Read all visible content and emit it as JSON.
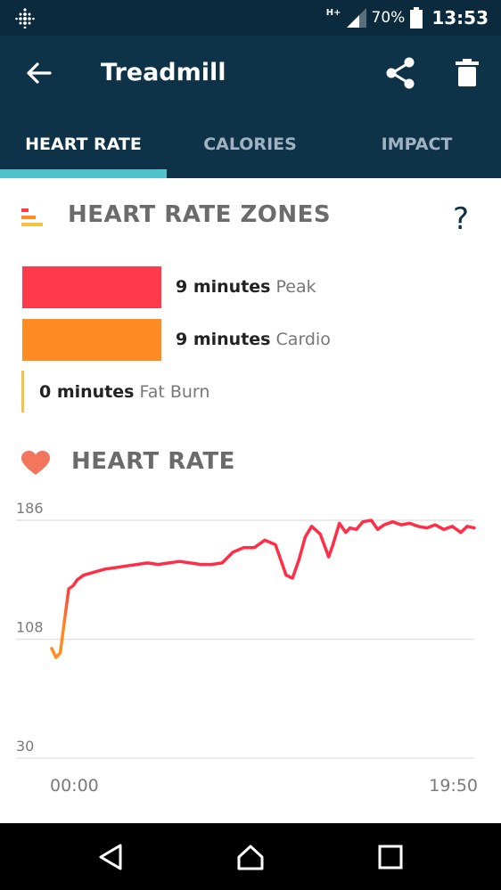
{
  "status": {
    "network": "H+",
    "battery": "70%",
    "time": "13:53"
  },
  "header": {
    "title": "Treadmill"
  },
  "tabs": [
    {
      "label": "HEART RATE",
      "active": true
    },
    {
      "label": "CALORIES",
      "active": false
    },
    {
      "label": "IMPACT",
      "active": false
    }
  ],
  "zones": {
    "title": "HEART RATE ZONES",
    "help": "?",
    "items": [
      {
        "duration": "9 minutes",
        "name": "Peak",
        "color": "#ff3b4b",
        "fill": 1.0
      },
      {
        "duration": "9 minutes",
        "name": "Cardio",
        "color": "#ff8c22",
        "fill": 1.0
      },
      {
        "duration": "0 minutes",
        "name": "Fat Burn",
        "color": "#f5c242",
        "fill": 0.0
      }
    ]
  },
  "heart_rate": {
    "title": "HEART RATE"
  },
  "chart_data": {
    "type": "line",
    "y_ticks": [
      "186",
      "108",
      "30"
    ],
    "x_labels": [
      "00:00",
      "19:50"
    ],
    "ylim": [
      30,
      186
    ],
    "grid": true,
    "colors": {
      "peak": "#ff2d45",
      "cardio": "#ff8c22"
    },
    "series": [
      {
        "x": [
          0,
          0.2,
          0.4,
          0.6,
          0.8,
          1.0,
          1.2,
          1.5,
          2.0,
          2.5,
          3.0,
          3.5,
          4.0,
          4.5,
          5.0,
          5.5,
          6.0,
          6.5,
          7.0,
          7.5,
          8.0,
          8.5,
          9.0,
          9.5,
          10.0,
          10.5,
          10.8,
          11.0,
          11.3,
          11.6,
          11.9,
          12.2,
          12.6,
          13.0,
          13.2,
          13.5,
          13.8,
          14.0,
          14.3,
          14.6,
          15.0,
          15.3,
          15.6,
          16.0,
          16.4,
          16.8,
          17.2,
          17.6,
          18.0,
          18.4,
          18.8,
          19.2,
          19.5,
          19.83
        ],
        "y": [
          102,
          96,
          99,
          120,
          141,
          143,
          147,
          150,
          152,
          154,
          155,
          156,
          157,
          158,
          157,
          158,
          159,
          158,
          157,
          157,
          158,
          165,
          168,
          168,
          173,
          170,
          158,
          150,
          148,
          160,
          175,
          182,
          177,
          162,
          170,
          184,
          178,
          181,
          180,
          185,
          186,
          180,
          183,
          185,
          183,
          184,
          182,
          181,
          183,
          180,
          182,
          178,
          182,
          181
        ]
      }
    ]
  }
}
